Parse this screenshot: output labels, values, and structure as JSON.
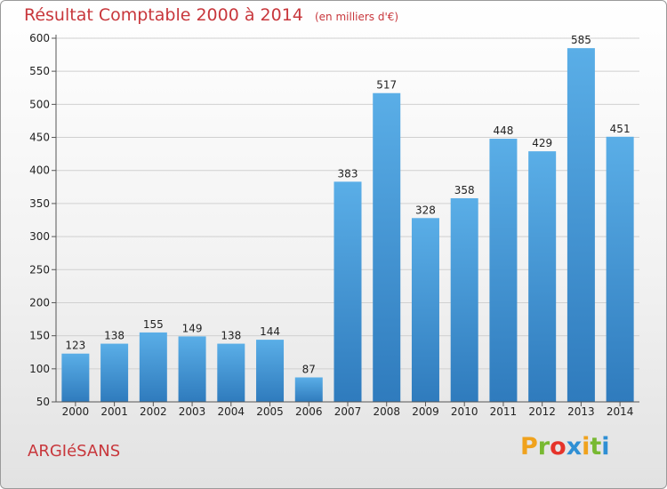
{
  "header": {
    "title": "Résultat Comptable 2000 à 2014",
    "subtitle": "(en milliers d'€)"
  },
  "footer": {
    "commune": "ARGIéSANS",
    "brand": [
      "P",
      "r",
      "o",
      "x",
      "i",
      "t",
      "i"
    ]
  },
  "colors": {
    "title": "#c8373c",
    "bar_top": "#5aaee7",
    "bar_bottom": "#2f7bbd",
    "brand_letters": [
      "#f0a21d",
      "#78b932",
      "#e6332a",
      "#2f8fd4",
      "#f0a21d",
      "#78b932",
      "#2f8fd4"
    ]
  },
  "chart_data": {
    "type": "bar",
    "title": "Résultat Comptable 2000 à 2014",
    "subtitle": "(en milliers d'€)",
    "categories": [
      "2000",
      "2001",
      "2002",
      "2003",
      "2004",
      "2005",
      "2006",
      "2007",
      "2008",
      "2009",
      "2010",
      "2011",
      "2012",
      "2013",
      "2014"
    ],
    "values": [
      123,
      138,
      155,
      149,
      138,
      144,
      87,
      383,
      517,
      328,
      358,
      448,
      429,
      585,
      451
    ],
    "ylim": [
      50,
      600
    ],
    "yticks": [
      50,
      100,
      150,
      200,
      250,
      300,
      350,
      400,
      450,
      500,
      550,
      600
    ],
    "grid": true,
    "data_labels": true
  }
}
